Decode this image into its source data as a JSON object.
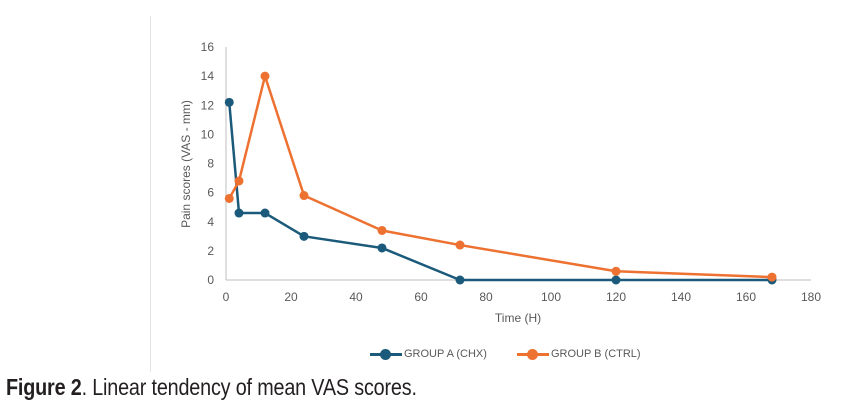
{
  "caption": {
    "label": "Figure 2",
    "text": ". Linear tendency of mean VAS scores."
  },
  "chart_data": {
    "type": "line",
    "title": "",
    "xlabel": "Time (H)",
    "ylabel": "Pain scores (VAS - mm)",
    "xlim": [
      0,
      180
    ],
    "ylim": [
      0,
      16
    ],
    "xticks": [
      0,
      20,
      40,
      60,
      80,
      100,
      120,
      140,
      160,
      180
    ],
    "yticks": [
      0,
      2,
      4,
      6,
      8,
      10,
      12,
      14,
      16
    ],
    "grid": false,
    "legend_position": "bottom",
    "x": [
      1,
      4,
      12,
      24,
      48,
      72,
      120,
      168
    ],
    "series": [
      {
        "name": "GROUP A (CHX)",
        "color": "#1b5a7a",
        "values": [
          12.2,
          4.6,
          4.6,
          3.0,
          2.2,
          0,
          0,
          0
        ]
      },
      {
        "name": "GROUP B (CTRL)",
        "color": "#ed7130",
        "values": [
          5.6,
          6.8,
          14.0,
          5.8,
          3.4,
          2.4,
          0.6,
          0.2
        ]
      }
    ]
  }
}
